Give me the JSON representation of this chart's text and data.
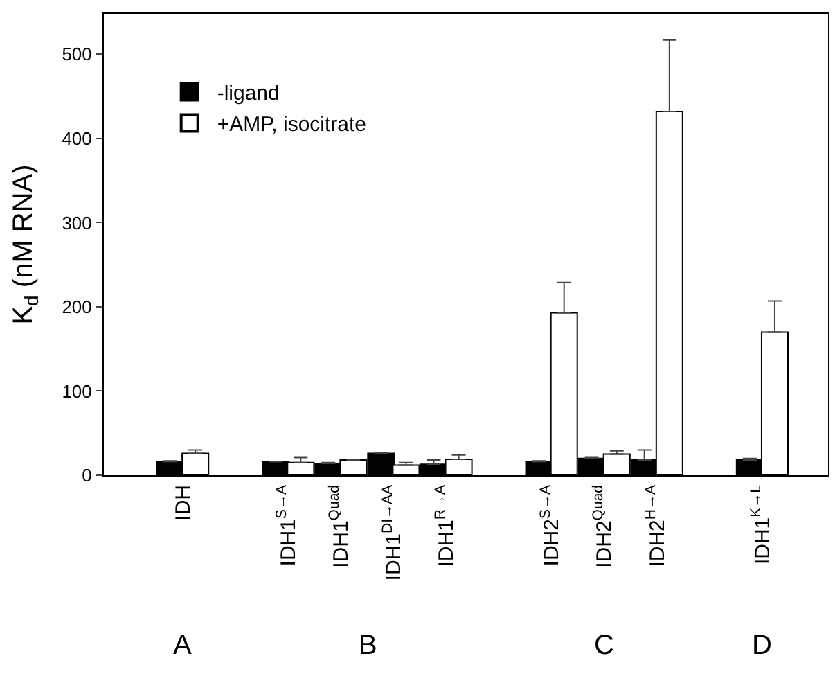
{
  "chart_data": {
    "type": "bar",
    "ylabel": "K$_{d}$ (nM RNA)",
    "categories": [
      "IDH",
      null,
      "IDH1$^{S→A}$",
      "IDH1$^{Quad}$",
      "IDH1$^{DI→AA}$",
      "IDH1$^{R→A}$",
      null,
      "IDH2$^{S→A}$",
      "IDH2$^{Quad}$",
      "IDH2$^{H→A}$",
      null,
      "IDH1$^{K→L}$"
    ],
    "series": [
      {
        "name": "-ligand",
        "color": "#000000",
        "values": [
          16,
          null,
          16,
          14,
          26,
          13,
          null,
          16,
          20,
          18,
          null,
          18
        ],
        "errors": [
          [
            16,
            17
          ],
          null,
          [
            16,
            16
          ],
          [
            14,
            15
          ],
          [
            26,
            27
          ],
          [
            13,
            18
          ],
          null,
          [
            16,
            17
          ],
          [
            20,
            21
          ],
          [
            18,
            30
          ],
          null,
          [
            18,
            20
          ]
        ]
      },
      {
        "name": "+AMP, isocitrate",
        "color": "#ffffff",
        "values": [
          26,
          null,
          15,
          18,
          12,
          19,
          null,
          193,
          25,
          432,
          null,
          170
        ],
        "errors": [
          [
            26,
            30
          ],
          null,
          [
            15,
            21
          ],
          [
            18,
            18
          ],
          [
            12,
            15
          ],
          [
            19,
            24
          ],
          null,
          [
            193,
            229
          ],
          [
            25,
            29
          ],
          [
            432,
            517
          ],
          null,
          [
            170,
            207
          ]
        ]
      }
    ],
    "ylim": [
      0,
      548
    ],
    "yticks": [
      0,
      100,
      200,
      300,
      400,
      500
    ],
    "legend": "top left",
    "annotations": [
      "A",
      "B",
      "C",
      "D"
    ]
  }
}
